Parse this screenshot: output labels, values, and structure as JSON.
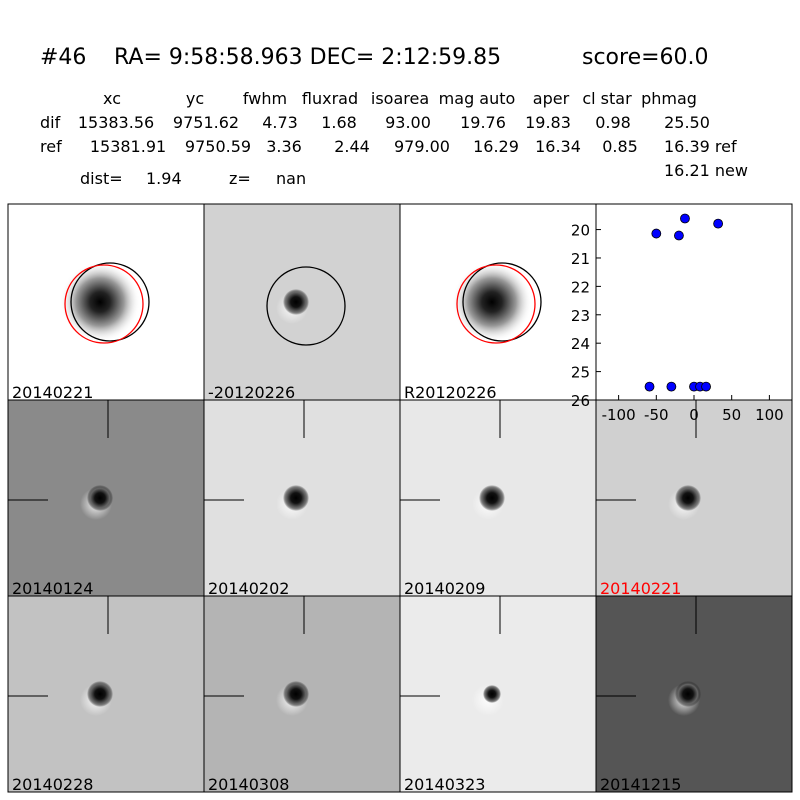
{
  "header": {
    "id": "#46",
    "coords": "RA= 9:58:58.963 DEC= 2:12:59.85",
    "score": "score=60.0"
  },
  "table": {
    "columns": [
      "xc",
      "yc",
      "fwhm",
      "fluxrad",
      "isoarea",
      "mag auto",
      "aper",
      "cl star",
      "phmag"
    ],
    "rows": [
      [
        "dif",
        "15383.56",
        "9751.62",
        "4.73",
        "1.68",
        "93.00",
        "19.76",
        "19.83",
        "0.98",
        "25.50"
      ],
      [
        "ref",
        "15381.91",
        "9750.59",
        "3.36",
        "2.44",
        "979.00",
        "16.29",
        "16.34",
        "0.85",
        "16.39 ref"
      ]
    ],
    "extra": "16.21 new"
  },
  "dist": {
    "label": "dist=",
    "value": "1.94"
  },
  "z": {
    "label": "z=",
    "value": "nan"
  },
  "panels": [
    "20140221",
    "-20120226",
    "R20120226",
    "20140124",
    "20140202",
    "20140209",
    "20140221",
    "20140228",
    "20140308",
    "20140323",
    "20141215"
  ],
  "chart_data": {
    "type": "scatter",
    "x": [
      -50,
      -20,
      -12,
      32,
      -59,
      -30,
      0,
      8,
      16
    ],
    "values": [
      20.14,
      20.21,
      19.61,
      19.79,
      25.53,
      25.53,
      25.53,
      25.53,
      25.53
    ],
    "color": "#0000ff",
    "xlim": [
      -130,
      130
    ],
    "ylim": [
      26,
      19.1
    ],
    "xticks": [
      -100,
      -50,
      0,
      50,
      100
    ],
    "yticks": [
      20,
      21,
      22,
      23,
      24,
      25,
      26
    ]
  }
}
